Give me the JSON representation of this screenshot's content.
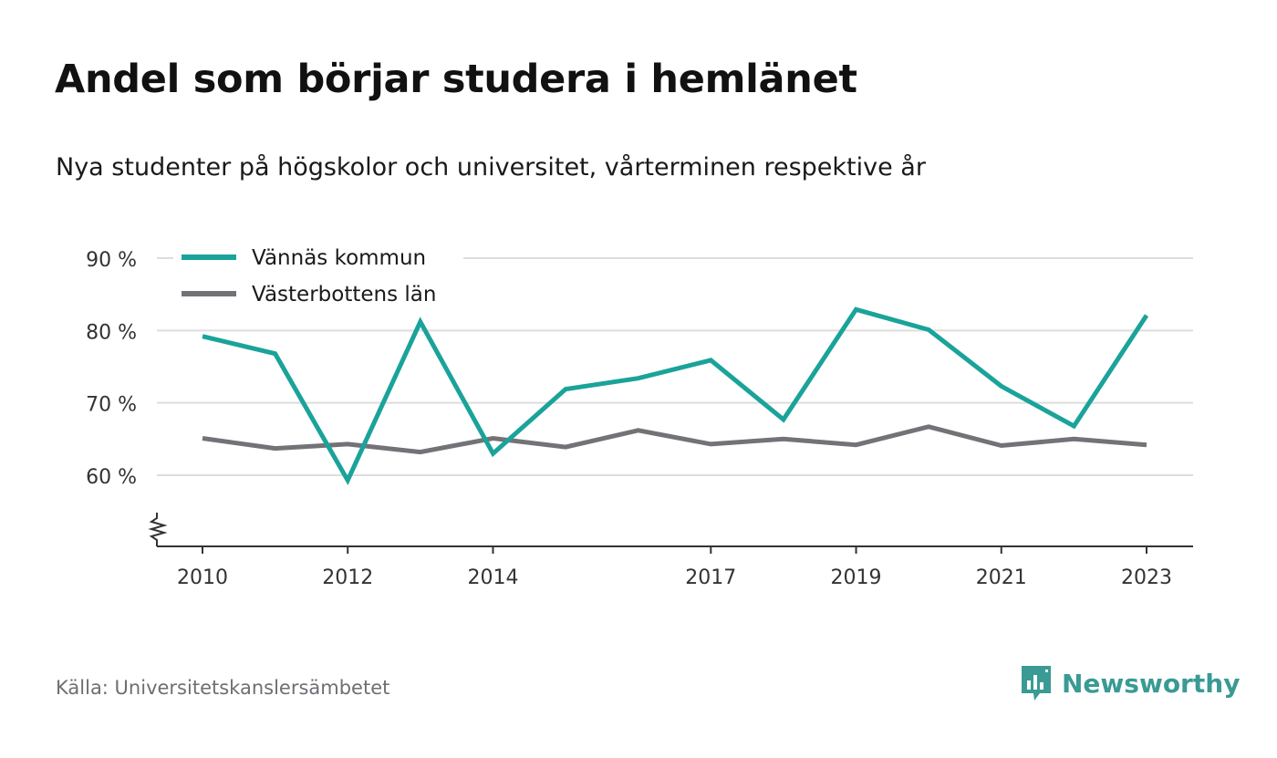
{
  "title": "Andel som börjar studera i hemlänet",
  "subtitle": "Nya studenter på högskolor och universitet, vårterminen respektive år",
  "source": "Källa: Universitetskanslersämbetet",
  "brand": {
    "name": "Newsworthy",
    "icon": "newsworthy-logo-icon"
  },
  "colors": {
    "series1": "#1aa39a",
    "series2": "#737277",
    "grid": "#dddddd",
    "axis": "#333333",
    "brand": "#3a9a94"
  },
  "chart_data": {
    "type": "line",
    "x": [
      2010,
      2011,
      2012,
      2013,
      2014,
      2015,
      2016,
      2017,
      2018,
      2019,
      2020,
      2021,
      2022,
      2023
    ],
    "x_tick_values": [
      2010,
      2012,
      2014,
      2017,
      2019,
      2021,
      2023
    ],
    "x_tick_labels": [
      "2010",
      "2012",
      "2014",
      "2017",
      "2019",
      "2021",
      "2023"
    ],
    "y_tick_values": [
      60,
      70,
      80,
      90
    ],
    "y_tick_labels": [
      "60 %",
      "70 %",
      "80 %",
      "90 %"
    ],
    "ylim": [
      50,
      90
    ],
    "y_axis_break": true,
    "grid": true,
    "legend_position": "top-left",
    "series": [
      {
        "name": "Vännäs kommun",
        "values": [
          79.2,
          76.8,
          59.3,
          81.2,
          63.0,
          71.9,
          73.4,
          75.9,
          67.7,
          82.9,
          80.1,
          72.3,
          66.8,
          82.1
        ]
      },
      {
        "name": "Västerbottens län",
        "values": [
          65.1,
          63.7,
          64.3,
          63.2,
          65.1,
          63.9,
          66.2,
          64.3,
          65.0,
          64.2,
          66.7,
          64.1,
          65.0,
          64.2
        ]
      }
    ]
  }
}
